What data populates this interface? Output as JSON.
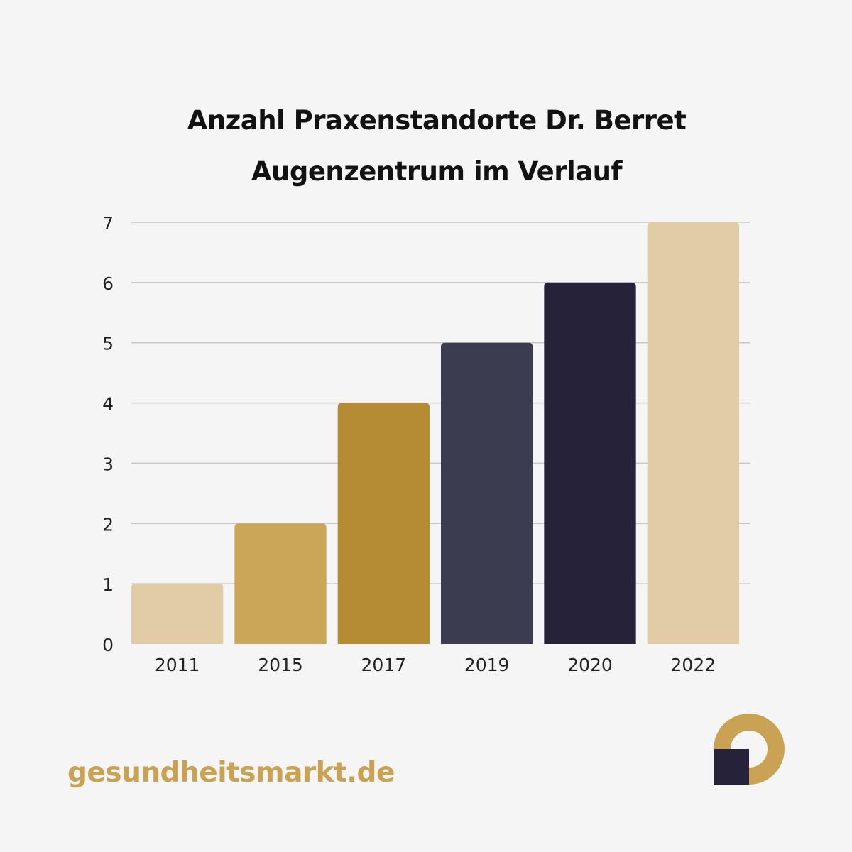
{
  "chart": {
    "title_line_1": "Anzahl Praxenstandorte Dr. Berret",
    "title_line_2": "Augenzentrum im Verlauf"
  },
  "chart_data": {
    "type": "bar",
    "title": "Anzahl Praxenstandorte Dr. Berret Augenzentrum im Verlauf",
    "xlabel": "",
    "ylabel": "",
    "categories": [
      "2011",
      "2015",
      "2017",
      "2019",
      "2020",
      "2022"
    ],
    "values": [
      1,
      2,
      4,
      5,
      6,
      7
    ],
    "bar_colors": [
      "#e1cca6",
      "#cca658",
      "#b58b34",
      "#3c3c50",
      "#25223a",
      "#e1cca6"
    ],
    "ylim": [
      0,
      7
    ],
    "yticks": [
      "0",
      "1",
      "2",
      "3",
      "4",
      "5",
      "6",
      "7"
    ],
    "grid": true,
    "legend": "none"
  },
  "footer": {
    "brand": "gesundheitsmarkt.de",
    "brand_color": "#c9a353",
    "logo_icon": "gesundheitsmarkt-logo-icon",
    "logo_colors": {
      "ring": "#c9a353",
      "square": "#25223a"
    }
  }
}
